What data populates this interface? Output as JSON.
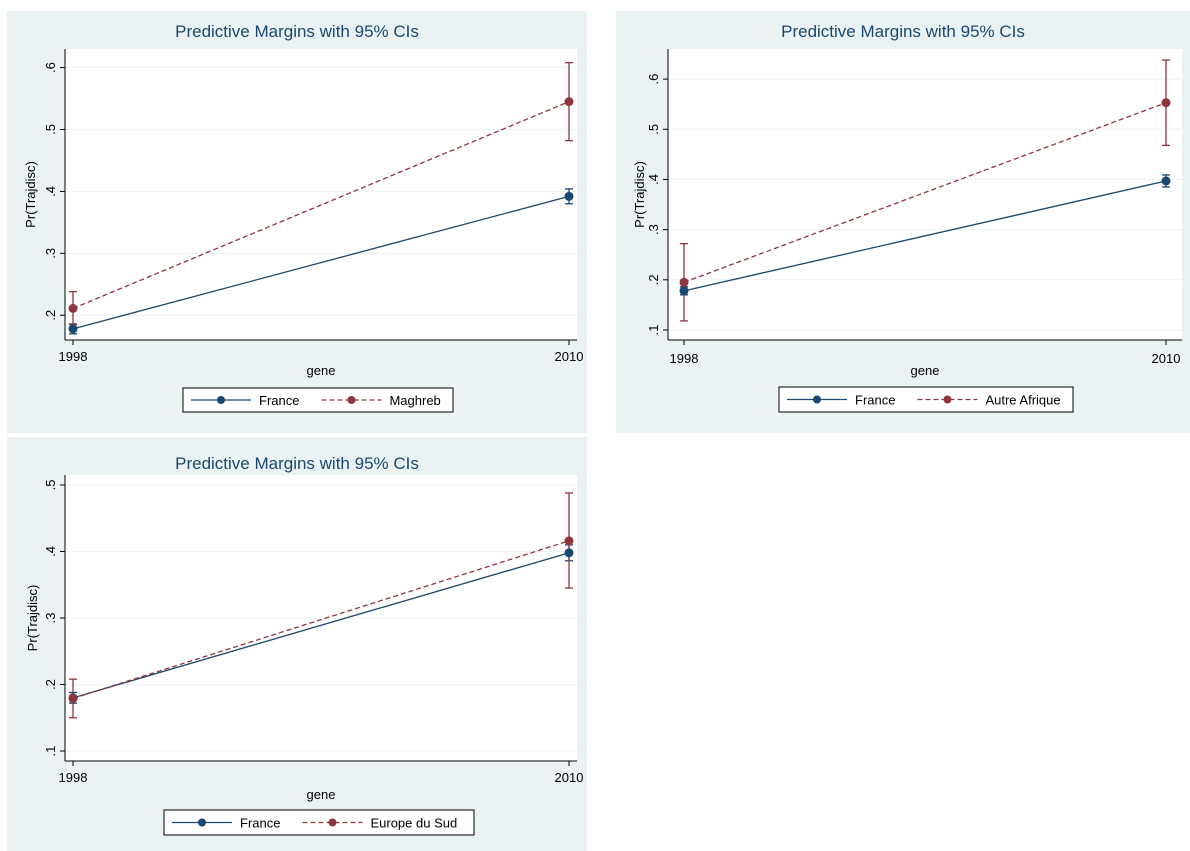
{
  "chart_data": [
    {
      "type": "line",
      "title": "Predictive Margins with 95% CIs",
      "xlabel": "gene",
      "ylabel": "Pr(Trajdisc)",
      "x": [
        1998,
        2010
      ],
      "x_tick_labels": [
        "1998",
        "2010"
      ],
      "ylim": [
        0.16,
        0.63
      ],
      "y_ticks": [
        0.2,
        0.3,
        0.4,
        0.5,
        0.6
      ],
      "y_tick_labels": [
        ".2",
        ".3",
        ".4",
        ".5",
        ".6"
      ],
      "grid": true,
      "legend_position": "bottom",
      "series": [
        {
          "name": "France",
          "values": [
            0.178,
            0.392
          ],
          "ci_low": [
            0.17,
            0.38
          ],
          "ci_high": [
            0.186,
            0.404
          ],
          "color": "#1a476f",
          "dash": false
        },
        {
          "name": "Maghreb",
          "values": [
            0.211,
            0.545
          ],
          "ci_low": [
            0.185,
            0.482
          ],
          "ci_high": [
            0.238,
            0.608
          ],
          "color": "#90353b",
          "dash": true
        }
      ]
    },
    {
      "type": "line",
      "title": "Predictive Margins with 95% CIs",
      "xlabel": "gene",
      "ylabel": "Pr(Trajdisc)",
      "x": [
        1998,
        2010
      ],
      "x_tick_labels": [
        "1998",
        "2010"
      ],
      "ylim": [
        0.08,
        0.66
      ],
      "y_ticks": [
        0.1,
        0.2,
        0.3,
        0.4,
        0.5,
        0.6
      ],
      "y_tick_labels": [
        ".1",
        ".2",
        ".3",
        ".4",
        ".5",
        ".6"
      ],
      "grid": true,
      "legend_position": "bottom",
      "series": [
        {
          "name": "France",
          "values": [
            0.178,
            0.397
          ],
          "ci_low": [
            0.17,
            0.385
          ],
          "ci_high": [
            0.186,
            0.409
          ],
          "color": "#1a476f",
          "dash": false
        },
        {
          "name": "Autre Afrique",
          "values": [
            0.195,
            0.553
          ],
          "ci_low": [
            0.118,
            0.468
          ],
          "ci_high": [
            0.272,
            0.638
          ],
          "color": "#90353b",
          "dash": true
        }
      ]
    },
    {
      "type": "line",
      "title": "Predictive Margins with 95% CIs",
      "xlabel": "gene",
      "ylabel": "Pr(Trajdisc)",
      "x": [
        1998,
        2010
      ],
      "x_tick_labels": [
        "1998",
        "2010"
      ],
      "ylim": [
        0.085,
        0.515
      ],
      "y_ticks": [
        0.1,
        0.2,
        0.3,
        0.4,
        0.5
      ],
      "y_tick_labels": [
        ".1",
        ".2",
        ".3",
        ".4",
        ".5"
      ],
      "grid": true,
      "legend_position": "bottom",
      "series": [
        {
          "name": "France",
          "values": [
            0.18,
            0.398
          ],
          "ci_low": [
            0.172,
            0.386
          ],
          "ci_high": [
            0.188,
            0.41
          ],
          "color": "#1a476f",
          "dash": false
        },
        {
          "name": "Europe du Sud",
          "values": [
            0.179,
            0.416
          ],
          "ci_low": [
            0.15,
            0.345
          ],
          "ci_high": [
            0.208,
            0.488
          ],
          "color": "#90353b",
          "dash": true
        }
      ]
    }
  ]
}
